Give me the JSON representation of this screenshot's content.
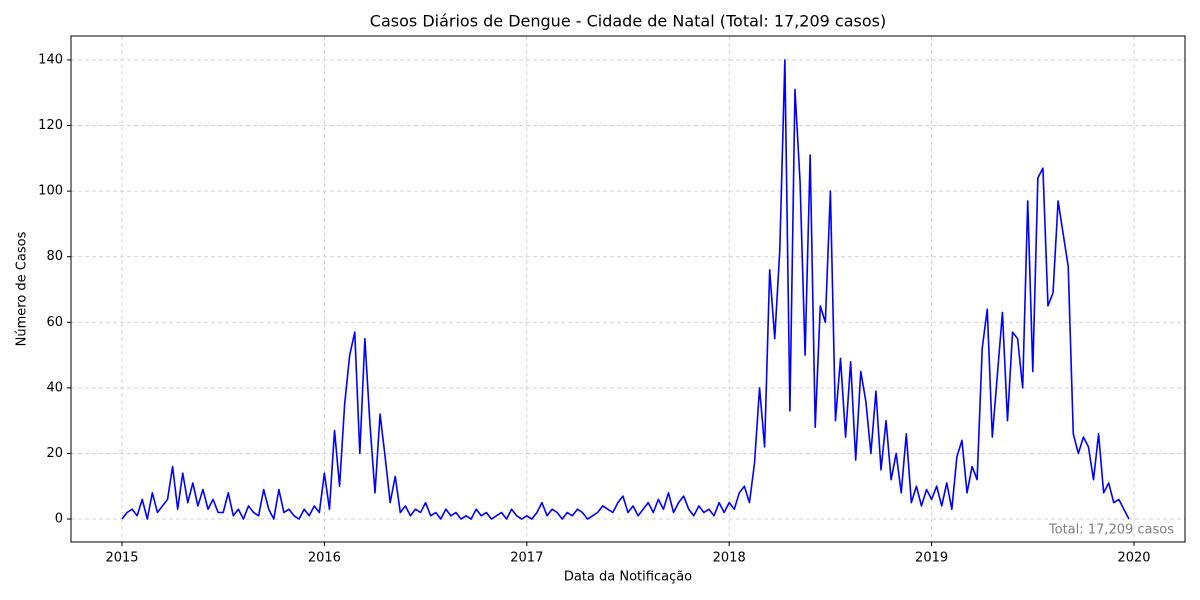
{
  "chart_data": {
    "type": "line",
    "title": "Casos Diários de Dengue - Cidade de Natal (Total: 17,209 casos)",
    "x_label": "Data da Notificação",
    "y_label": "Número de Casos",
    "annotation": "Total: 17,209 casos",
    "xlim": [
      2014.748,
      2020.252
    ],
    "xticks": [
      2015,
      2016,
      2017,
      2018,
      2019,
      2020
    ],
    "ylim": [
      -7.0,
      147.3
    ],
    "yticks": [
      0,
      20,
      40,
      60,
      80,
      100,
      120,
      140
    ],
    "grid": true,
    "x": [
      2015,
      2015.025,
      2015.05,
      2015.075,
      2015.1,
      2015.125,
      2015.15,
      2015.175,
      2015.2,
      2015.225,
      2015.25,
      2015.275,
      2015.3,
      2015.325,
      2015.35,
      2015.375,
      2015.4,
      2015.425,
      2015.45,
      2015.475,
      2015.5,
      2015.525,
      2015.55,
      2015.575,
      2015.6,
      2015.625,
      2015.65,
      2015.675,
      2015.7,
      2015.725,
      2015.75,
      2015.775,
      2015.8,
      2015.825,
      2015.85,
      2015.875,
      2015.9,
      2015.925,
      2015.95,
      2015.975,
      2016,
      2016.025,
      2016.05,
      2016.075,
      2016.1,
      2016.125,
      2016.15,
      2016.175,
      2016.2,
      2016.225,
      2016.25,
      2016.275,
      2016.3,
      2016.325,
      2016.35,
      2016.375,
      2016.4,
      2016.425,
      2016.45,
      2016.475,
      2016.5,
      2016.525,
      2016.55,
      2016.575,
      2016.6,
      2016.625,
      2016.65,
      2016.675,
      2016.7,
      2016.725,
      2016.75,
      2016.775,
      2016.8,
      2016.825,
      2016.85,
      2016.875,
      2016.9,
      2016.925,
      2016.95,
      2016.975,
      2017,
      2017.025,
      2017.05,
      2017.075,
      2017.1,
      2017.125,
      2017.15,
      2017.175,
      2017.2,
      2017.225,
      2017.25,
      2017.275,
      2017.3,
      2017.325,
      2017.35,
      2017.375,
      2017.4,
      2017.425,
      2017.45,
      2017.475,
      2017.5,
      2017.525,
      2017.55,
      2017.575,
      2017.6,
      2017.625,
      2017.65,
      2017.675,
      2017.7,
      2017.725,
      2017.75,
      2017.775,
      2017.8,
      2017.825,
      2017.85,
      2017.875,
      2017.9,
      2017.925,
      2017.95,
      2017.975,
      2018,
      2018.025,
      2018.05,
      2018.075,
      2018.1,
      2018.125,
      2018.15,
      2018.175,
      2018.2,
      2018.225,
      2018.25,
      2018.275,
      2018.3,
      2018.325,
      2018.35,
      2018.375,
      2018.4,
      2018.425,
      2018.45,
      2018.475,
      2018.5,
      2018.525,
      2018.55,
      2018.575,
      2018.6,
      2018.625,
      2018.65,
      2018.675,
      2018.7,
      2018.725,
      2018.75,
      2018.775,
      2018.8,
      2018.825,
      2018.85,
      2018.875,
      2018.9,
      2018.925,
      2018.95,
      2018.975,
      2019,
      2019.025,
      2019.05,
      2019.075,
      2019.1,
      2019.125,
      2019.15,
      2019.175,
      2019.2,
      2019.225,
      2019.25,
      2019.275,
      2019.3,
      2019.325,
      2019.35,
      2019.375,
      2019.4,
      2019.425,
      2019.45,
      2019.475,
      2019.5,
      2019.525,
      2019.55,
      2019.575,
      2019.6,
      2019.625,
      2019.65,
      2019.675,
      2019.7,
      2019.725,
      2019.75,
      2019.775,
      2019.8,
      2019.825,
      2019.85,
      2019.875,
      2019.9,
      2019.925,
      2019.95,
      2019.975
    ],
    "series": [
      {
        "color": "#0000ff",
        "values": [
          0,
          2,
          3,
          1,
          6,
          0,
          8,
          2,
          4,
          6,
          16,
          3,
          14,
          5,
          11,
          4,
          9,
          3,
          6,
          2,
          2,
          8,
          1,
          3,
          0,
          4,
          2,
          1,
          9,
          3,
          0,
          9,
          2,
          3,
          1,
          0,
          3,
          1,
          4,
          2,
          14,
          3,
          27,
          10,
          35,
          50,
          57,
          20,
          55,
          29,
          8,
          32,
          19,
          5,
          13,
          2,
          4,
          1,
          3,
          2,
          5,
          1,
          2,
          0,
          3,
          1,
          2,
          0,
          1,
          0,
          3,
          1,
          2,
          0,
          1,
          2,
          0,
          3,
          1,
          0,
          1,
          0,
          2,
          5,
          1,
          3,
          2,
          0,
          2,
          1,
          3,
          2,
          0,
          1,
          2,
          4,
          3,
          2,
          5,
          7,
          2,
          4,
          1,
          3,
          5,
          2,
          6,
          3,
          8,
          2,
          5,
          7,
          3,
          1,
          4,
          2,
          3,
          1,
          5,
          2,
          5,
          3,
          8,
          10,
          5,
          17,
          40,
          22,
          76,
          55,
          82,
          140,
          33,
          131,
          103,
          50,
          111,
          28,
          65,
          60,
          100,
          30,
          49,
          25,
          48,
          18,
          45,
          36,
          20,
          39,
          15,
          30,
          12,
          20,
          8,
          26,
          5,
          10,
          4,
          9,
          6,
          10,
          4,
          11,
          3,
          19,
          24,
          8,
          16,
          12,
          52,
          64,
          25,
          44,
          63,
          30,
          57,
          55,
          40,
          97,
          45,
          104,
          107,
          65,
          69,
          97,
          87,
          77,
          26,
          20,
          25,
          22,
          12,
          26,
          8,
          11,
          5,
          6,
          3,
          0
        ]
      }
    ]
  }
}
